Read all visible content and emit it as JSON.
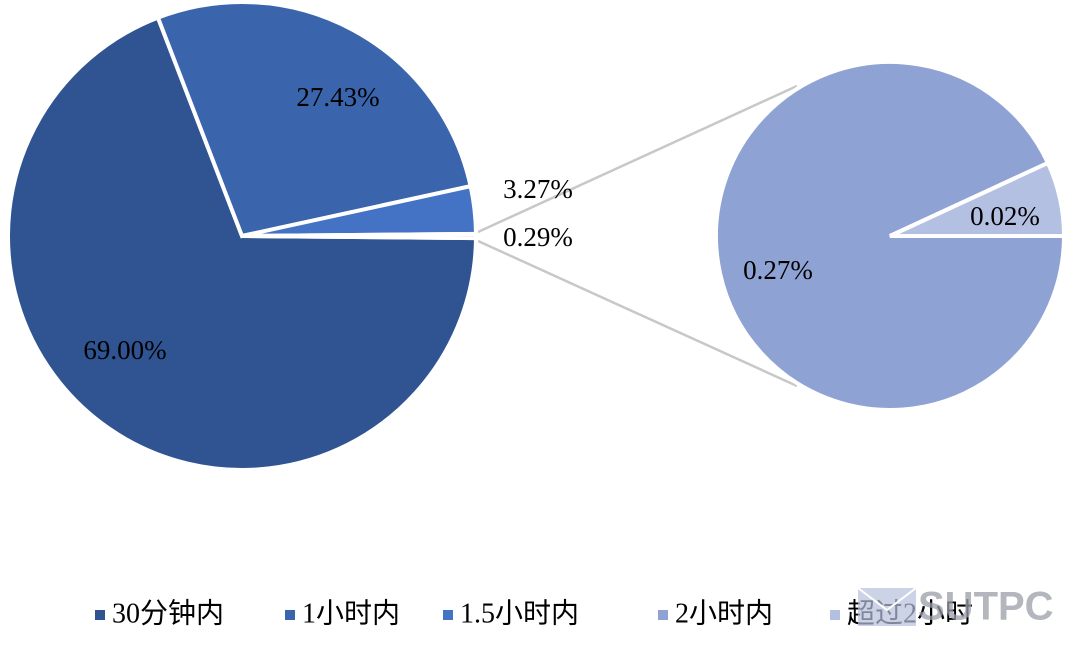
{
  "chart_data": {
    "type": "pie-of-pie",
    "categories": [
      "30分钟内",
      "1小时内",
      "1.5小时内",
      null
    ],
    "values": [
      69.0,
      27.43,
      3.27,
      0.29
    ],
    "value_labels": [
      "69.00%",
      "27.43%",
      "3.27%",
      "0.29%"
    ],
    "colors": [
      "#2f5491",
      "#3a65ad",
      "#4472c4",
      "#8fa2d4"
    ],
    "secondary": {
      "categories": [
        "2小时内",
        "超过2小时"
      ],
      "values": [
        0.27,
        0.02
      ],
      "value_labels": [
        "0.27%",
        "0.02%"
      ],
      "colors": [
        "#8fa2d4",
        "#b4c0e2"
      ]
    },
    "watermark": "SUTPC"
  }
}
